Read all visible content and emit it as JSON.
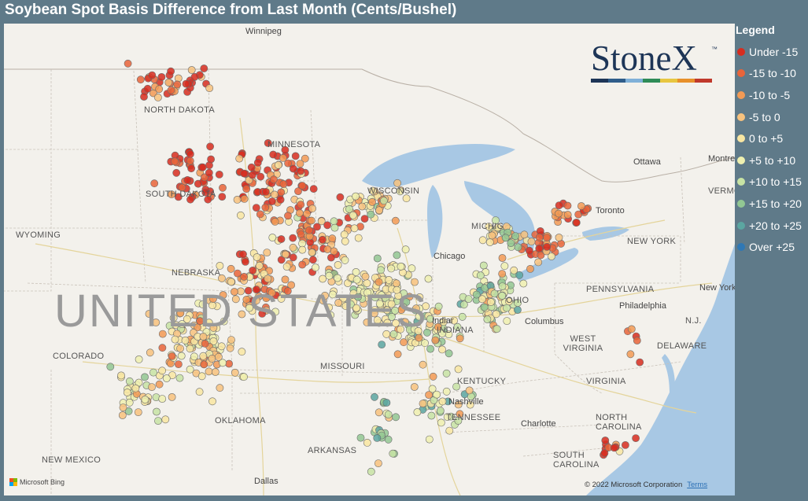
{
  "title": "Soybean Spot Basis Difference from Last Month (Cents/Bushel)",
  "legend": {
    "title": "Legend",
    "items": [
      {
        "label": "Under -15",
        "color": "#d62d20"
      },
      {
        "label": "-15 to -10",
        "color": "#e8643a"
      },
      {
        "label": "-10 to -5",
        "color": "#f29a55"
      },
      {
        "label": "-5 to 0",
        "color": "#f7c27e"
      },
      {
        "label": "0 to +5",
        "color": "#f8e6a2"
      },
      {
        "label": "+5 to +10",
        "color": "#eef0b0"
      },
      {
        "label": "+10 to +15",
        "color": "#c7e3a4"
      },
      {
        "label": "+15 to +20",
        "color": "#92c793"
      },
      {
        "label": "+20 to +25",
        "color": "#5ba6a1"
      },
      {
        "label": "Over +25",
        "color": "#2f78b5"
      }
    ]
  },
  "logo": {
    "text": "StoneX",
    "trademark": "™",
    "bar_colors": [
      "#1d3557",
      "#2f5d8a",
      "#7fb0d8",
      "#2e8b57",
      "#e8c640",
      "#e8902a",
      "#c0392b"
    ]
  },
  "map_labels": {
    "states": [
      "NORTH DAKOTA",
      "SOUTH DAKOTA",
      "MINNESOTA",
      "WISCONSIN",
      "WYOMING",
      "NEBRASKA",
      "COLORADO",
      "MISSOURI",
      "INDIANA",
      "OHIO",
      "KENTUCKY",
      "TENNESSEE",
      "WEST VIRGINIA",
      "VIRGINIA",
      "NORTH CAROLINA",
      "SOUTH CAROLINA",
      "PENNSYLVANIA",
      "NEW YORK",
      "NEW MEXICO",
      "OKLAHOMA",
      "ARKANSAS",
      "MICHIGAN",
      "VERMONT",
      "DELAWARE",
      "N.J."
    ],
    "cities": [
      "Winnipeg",
      "Ottawa",
      "Montreal",
      "Toronto",
      "Chicago",
      "Columbus",
      "Indianapolis",
      "Nashville",
      "Charlotte",
      "Philadelphia",
      "New York",
      "Dallas"
    ],
    "country": "UNITED STATES"
  },
  "attribution": {
    "provider": "Microsoft Bing",
    "copyright": "© 2022 Microsoft Corporation",
    "terms": "Terms"
  }
}
